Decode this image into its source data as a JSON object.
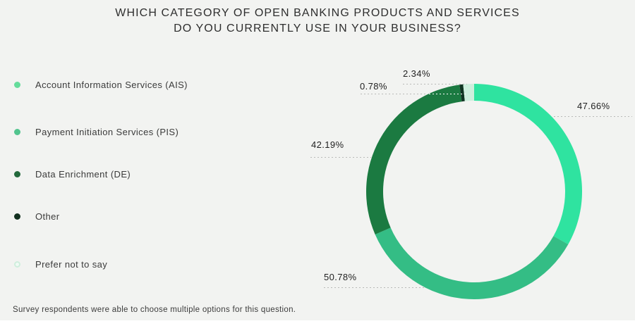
{
  "title": {
    "line1": "WHICH CATEGORY OF OPEN BANKING PRODUCTS AND SERVICES",
    "line2": "DO YOU CURRENTLY USE IN YOUR BUSINESS?"
  },
  "footnote": "Survey respondents were able to choose multiple options for this question.",
  "legend": {
    "items": [
      {
        "label": "Account Information Services (AIS)",
        "color": "#65dc9b",
        "ring": false
      },
      {
        "label": "Payment Initiation Services (PIS)",
        "color": "#52c48e",
        "ring": false
      },
      {
        "label": "Data Enrichment (DE)",
        "color": "#24693c",
        "ring": false
      },
      {
        "label": "Other",
        "color": "#13301f",
        "ring": false
      },
      {
        "label": "Prefer not to say",
        "color": "#cfeedd",
        "ring": true
      }
    ]
  },
  "chart_data": {
    "type": "pie",
    "subtype": "donut",
    "title": "WHICH CATEGORY OF OPEN BANKING PRODUCTS AND SERVICES DO YOU CURRENTLY USE IN YOUR BUSINESS?",
    "note": "Percentages sum to more than 100% because respondents could choose multiple options; donut angles are normalized to the total of all values.",
    "start_angle_deg": 0,
    "direction": "clockwise",
    "series": [
      {
        "short": "ais",
        "label": "Account Information Services (AIS)",
        "value": 47.66,
        "display": "47.66%",
        "color": "#2fe3a0"
      },
      {
        "short": "pis",
        "label": "Payment Initiation Services (PIS)",
        "value": 50.78,
        "display": "50.78%",
        "color": "#34bd85"
      },
      {
        "short": "de",
        "label": "Data Enrichment (DE)",
        "value": 42.19,
        "display": "42.19%",
        "color": "#1b7a41"
      },
      {
        "short": "other",
        "label": "Other",
        "value": 0.78,
        "display": "0.78%",
        "color": "#0f3422"
      },
      {
        "short": "prefer",
        "label": "Prefer not to say",
        "value": 2.34,
        "display": "2.34%",
        "color": "#cdefdd"
      }
    ]
  },
  "colors": {
    "background": "#f2f3f1",
    "leader_line": "#b9bab8",
    "title_text": "#2e2e2e"
  }
}
